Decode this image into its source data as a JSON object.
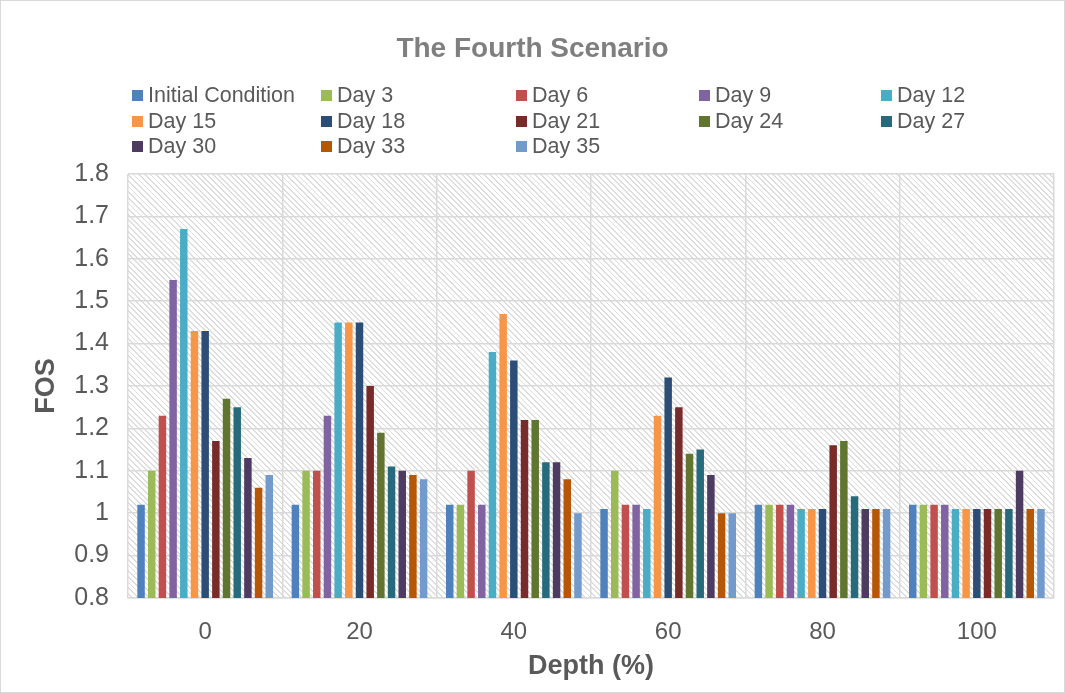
{
  "chart_data": {
    "type": "bar",
    "title": "The Fourth Scenario",
    "xlabel": "Depth (%)",
    "ylabel": "FOS",
    "categories": [
      "0",
      "20",
      "40",
      "60",
      "80",
      "100"
    ],
    "series": [
      {
        "name": "Initial Condition",
        "color": "#4f81bd",
        "values": [
          1.02,
          1.02,
          1.02,
          1.01,
          1.02,
          1.02
        ]
      },
      {
        "name": "Day 3",
        "color": "#9bbb59",
        "values": [
          1.1,
          1.1,
          1.02,
          1.1,
          1.02,
          1.02
        ]
      },
      {
        "name": "Day 6",
        "color": "#c0504d",
        "values": [
          1.23,
          1.1,
          1.1,
          1.02,
          1.02,
          1.02
        ]
      },
      {
        "name": "Day 9",
        "color": "#8064a2",
        "values": [
          1.55,
          1.23,
          1.02,
          1.02,
          1.02,
          1.02
        ]
      },
      {
        "name": "Day 12",
        "color": "#4bacc6",
        "values": [
          1.67,
          1.45,
          1.38,
          1.01,
          1.01,
          1.01
        ]
      },
      {
        "name": "Day 15",
        "color": "#f79646",
        "values": [
          1.43,
          1.45,
          1.47,
          1.23,
          1.01,
          1.01
        ]
      },
      {
        "name": "Day 18",
        "color": "#2c4d75",
        "values": [
          1.43,
          1.45,
          1.36,
          1.32,
          1.01,
          1.01
        ]
      },
      {
        "name": "Day 21",
        "color": "#772c2a",
        "values": [
          1.17,
          1.3,
          1.22,
          1.25,
          1.16,
          1.01
        ]
      },
      {
        "name": "Day 24",
        "color": "#5f7530",
        "values": [
          1.27,
          1.19,
          1.22,
          1.14,
          1.17,
          1.01
        ]
      },
      {
        "name": "Day 27",
        "color": "#276a7c",
        "values": [
          1.25,
          1.11,
          1.12,
          1.15,
          1.04,
          1.01
        ]
      },
      {
        "name": "Day 30",
        "color": "#4d3b62",
        "values": [
          1.13,
          1.1,
          1.12,
          1.09,
          1.01,
          1.1
        ]
      },
      {
        "name": "Day 33",
        "color": "#b65708",
        "values": [
          1.06,
          1.09,
          1.08,
          1.0,
          1.01,
          1.01
        ]
      },
      {
        "name": "Day 35",
        "color": "#729aca",
        "values": [
          1.09,
          1.08,
          1.0,
          1.0,
          1.01,
          1.01
        ]
      }
    ],
    "ylim": [
      0.8,
      1.8
    ],
    "yticks": [
      0.8,
      0.9,
      1,
      1.1,
      1.2,
      1.3,
      1.4,
      1.5,
      1.6,
      1.7,
      1.8
    ],
    "grid": true,
    "legend": "top"
  }
}
